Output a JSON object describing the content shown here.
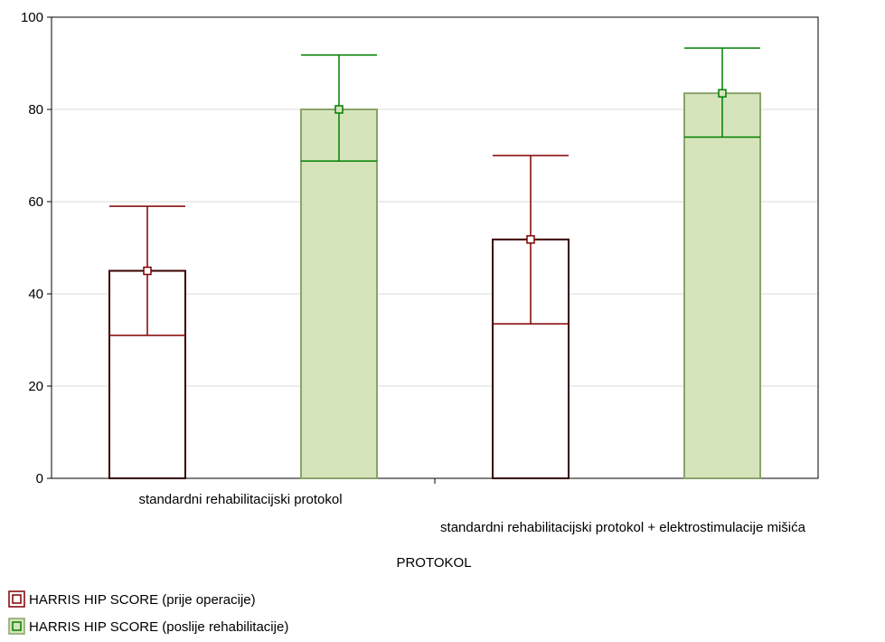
{
  "chart_data": {
    "type": "bar",
    "title": "",
    "xlabel": "PROTOKOL",
    "ylabel": "",
    "ylim": [
      0,
      100
    ],
    "yticks": [
      0,
      20,
      40,
      60,
      80,
      100
    ],
    "grid": true,
    "legend_position": "bottom-left",
    "categories": [
      "standardni rehabilitacijski protokol",
      "standardni rehabilitacijski protokol + elektrostimulacije mišića"
    ],
    "series": [
      {
        "name": "HARRIS HIP SCORE (prije operacije)",
        "color": "#800000",
        "fill": "#ffffff",
        "values": [
          45,
          51.8
        ],
        "error_low": [
          31,
          33.5
        ],
        "error_high": [
          59,
          70
        ]
      },
      {
        "name": "HARRIS HIP SCORE (poslije rehabilitacije)",
        "color": "#008000",
        "fill": "#d6e4bb",
        "values": [
          80,
          83.5
        ],
        "error_low": [
          68.8,
          74
        ],
        "error_high": [
          91.8,
          93.3
        ]
      }
    ]
  }
}
